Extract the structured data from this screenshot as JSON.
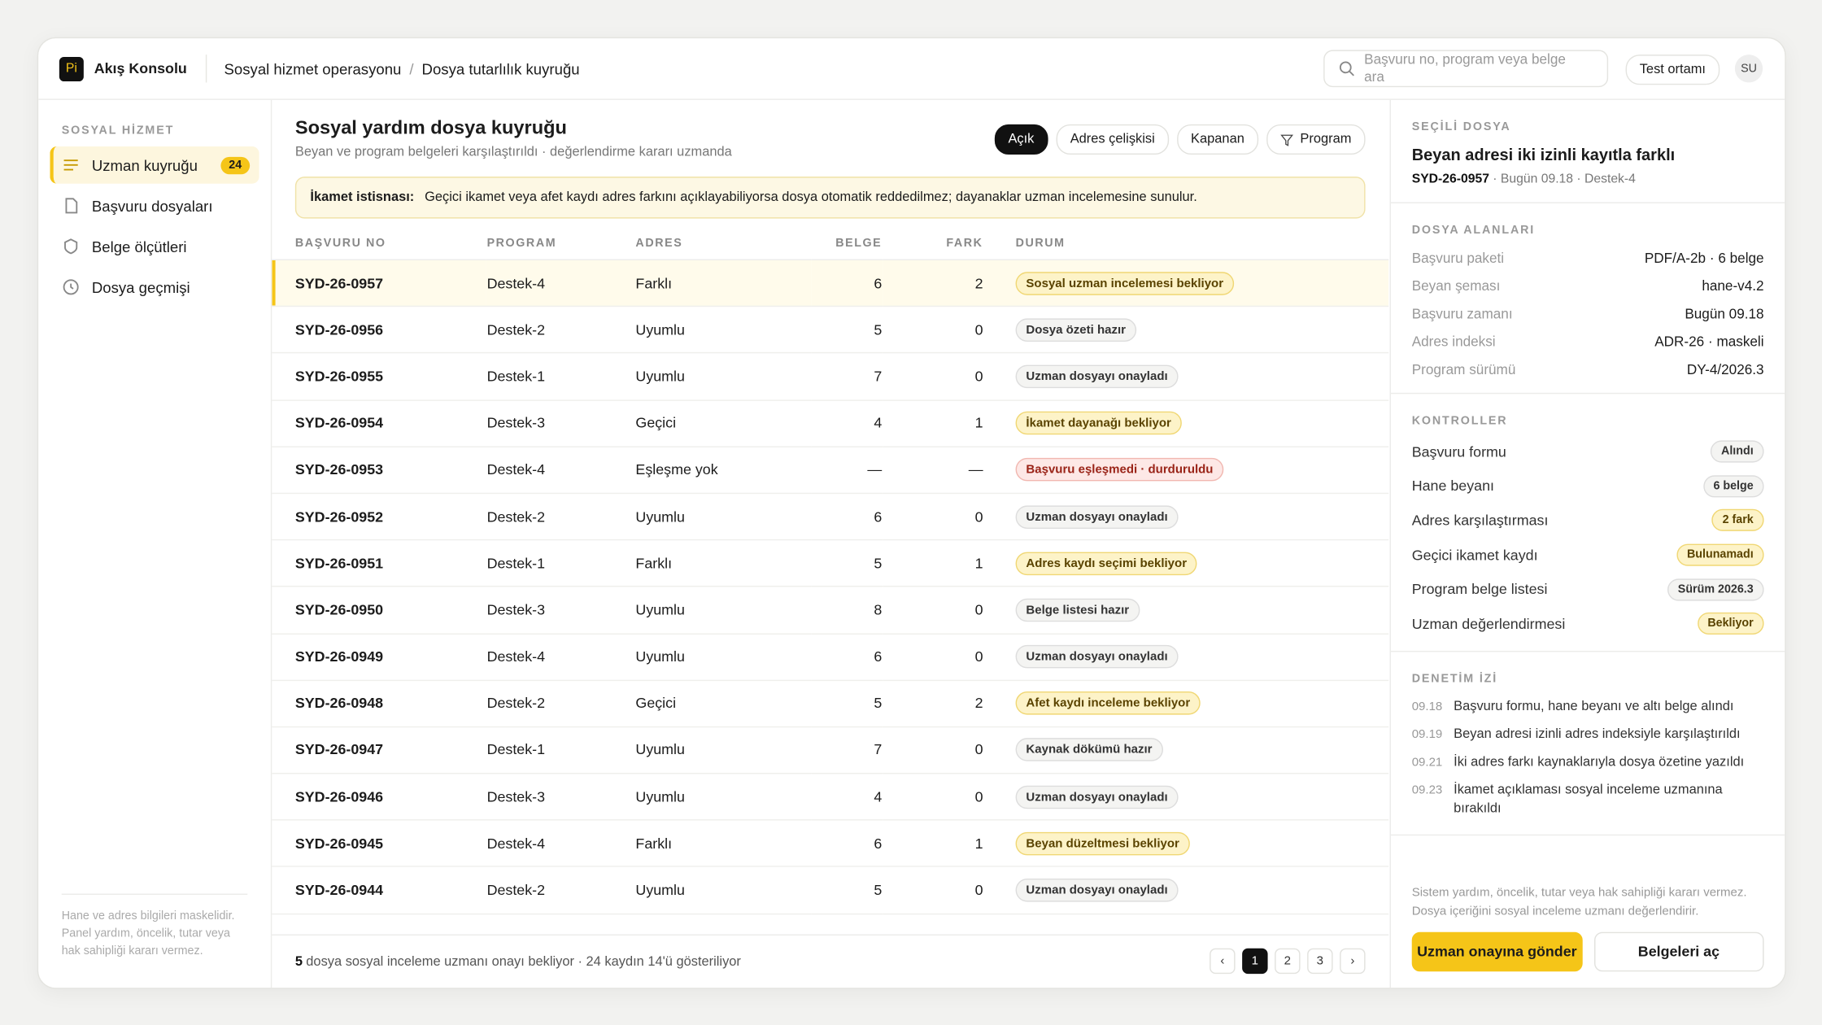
{
  "app": {
    "logo": "Pi",
    "name": "Akış Konsolu"
  },
  "breadcrumb": {
    "items": [
      "Sosyal hizmet operasyonu",
      "Dosya tutarlılık kuyruğu"
    ],
    "separator": "/"
  },
  "search": {
    "placeholder": "Başvuru no, program veya belge ara"
  },
  "environment": "Test ortamı",
  "avatar": "SU",
  "sidebar": {
    "section": "SOSYAL HİZMET",
    "items": [
      {
        "label": "Uzman kuyruğu",
        "badge": 24,
        "active": true
      },
      {
        "label": "Başvuru dosyaları"
      },
      {
        "label": "Belge ölçütleri"
      },
      {
        "label": "Dosya geçmişi"
      }
    ],
    "note": "Hane ve adres bilgileri maskelidir. Panel yardım, öncelik, tutar veya hak sahipliği kararı vermez."
  },
  "main": {
    "title": "Sosyal yardım dosya kuyruğu",
    "subtitle": "Beyan ve program belgeleri karşılaştırıldı · değerlendirme kararı uzmanda",
    "filters": [
      {
        "label": "Açık",
        "active": true
      },
      {
        "label": "Adres çelişkisi"
      },
      {
        "label": "Kapanan"
      },
      {
        "label": "Program",
        "icon": "filter"
      }
    ],
    "notice": {
      "label": "İkamet istisnası:",
      "text": "Geçici ikamet veya afet kaydı adres farkını açıklayabiliyorsa dosya otomatik reddedilmez; dayanaklar uzman incelemesine sunulur."
    },
    "table": {
      "columns": [
        "BAŞVURU NO",
        "PROGRAM",
        "ADRES",
        "BELGE",
        "FARK",
        "DURUM"
      ],
      "rows": [
        [
          "SYD-26-0957",
          "Destek-4",
          "Farklı",
          6,
          2,
          {
            "text": "Sosyal uzman incelemesi bekliyor",
            "tone": "warn"
          }
        ],
        [
          "SYD-26-0956",
          "Destek-2",
          "Uyumlu",
          5,
          0,
          {
            "text": "Dosya özeti hazır",
            "tone": "neutral"
          }
        ],
        [
          "SYD-26-0955",
          "Destek-1",
          "Uyumlu",
          7,
          0,
          {
            "text": "Uzman dosyayı onayladı",
            "tone": "neutral"
          }
        ],
        [
          "SYD-26-0954",
          "Destek-3",
          "Geçici",
          4,
          1,
          {
            "text": "İkamet dayanağı bekliyor",
            "tone": "warn"
          }
        ],
        [
          "SYD-26-0953",
          "Destek-4",
          "Eşleşme yok",
          "—",
          "—",
          {
            "text": "Başvuru eşleşmedi · durduruldu",
            "tone": "danger"
          }
        ],
        [
          "SYD-26-0952",
          "Destek-2",
          "Uyumlu",
          6,
          0,
          {
            "text": "Uzman dosyayı onayladı",
            "tone": "neutral"
          }
        ],
        [
          "SYD-26-0951",
          "Destek-1",
          "Farklı",
          5,
          1,
          {
            "text": "Adres kaydı seçimi bekliyor",
            "tone": "warn"
          }
        ],
        [
          "SYD-26-0950",
          "Destek-3",
          "Uyumlu",
          8,
          0,
          {
            "text": "Belge listesi hazır",
            "tone": "neutral"
          }
        ],
        [
          "SYD-26-0949",
          "Destek-4",
          "Uyumlu",
          6,
          0,
          {
            "text": "Uzman dosyayı onayladı",
            "tone": "neutral"
          }
        ],
        [
          "SYD-26-0948",
          "Destek-2",
          "Geçici",
          5,
          2,
          {
            "text": "Afet kaydı inceleme bekliyor",
            "tone": "warn"
          }
        ],
        [
          "SYD-26-0947",
          "Destek-1",
          "Uyumlu",
          7,
          0,
          {
            "text": "Kaynak dökümü hazır",
            "tone": "neutral"
          }
        ],
        [
          "SYD-26-0946",
          "Destek-3",
          "Uyumlu",
          4,
          0,
          {
            "text": "Uzman dosyayı onayladı",
            "tone": "neutral"
          }
        ],
        [
          "SYD-26-0945",
          "Destek-4",
          "Farklı",
          6,
          1,
          {
            "text": "Beyan düzeltmesi bekliyor",
            "tone": "warn"
          }
        ],
        [
          "SYD-26-0944",
          "Destek-2",
          "Uyumlu",
          5,
          0,
          {
            "text": "Uzman dosyayı onayladı",
            "tone": "neutral"
          }
        ]
      ],
      "selected_row": 0
    },
    "footer": {
      "count": 5,
      "text": "dosya sosyal inceleme uzmanı onayı bekliyor · 24 kaydın 14'ü gösteriliyor"
    },
    "pagination": {
      "prev": "‹",
      "pages": [
        "1",
        "2",
        "3"
      ],
      "current": 0,
      "next": "›"
    }
  },
  "detail": {
    "label": "SEÇİLİ DOSYA",
    "title": "Beyan adresi iki izinli kayıtla farklı",
    "id": "SYD-26-0957",
    "meta": "Bugün 09.18 · Destek-4",
    "fields_label": "DOSYA ALANLARI",
    "fields": [
      [
        "Başvuru paketi",
        "PDF/A-2b · 6 belge"
      ],
      [
        "Beyan şeması",
        "hane-v4.2"
      ],
      [
        "Başvuru zamanı",
        "Bugün 09.18"
      ],
      [
        "Adres indeksi",
        "ADR-26 · maskeli"
      ],
      [
        "Program sürümü",
        "DY-4/2026.3"
      ]
    ],
    "controls_label": "KONTROLLER",
    "controls": [
      {
        "label": "Başvuru formu",
        "status": "Alındı",
        "tone": "neutral"
      },
      {
        "label": "Hane beyanı",
        "status": "6 belge",
        "tone": "neutral"
      },
      {
        "label": "Adres karşılaştırması",
        "status": "2 fark",
        "tone": "warn"
      },
      {
        "label": "Geçici ikamet kaydı",
        "status": "Bulunamadı",
        "tone": "warn"
      },
      {
        "label": "Program belge listesi",
        "status": "Sürüm 2026.3",
        "tone": "neutral"
      },
      {
        "label": "Uzman değerlendirmesi",
        "status": "Bekliyor",
        "tone": "warn"
      }
    ],
    "audit_label": "DENETİM İZİ",
    "audit": [
      [
        "09.18",
        "Başvuru formu, hane beyanı ve altı belge alındı"
      ],
      [
        "09.19",
        "Beyan adresi izinli adres indeksiyle karşılaştırıldı"
      ],
      [
        "09.21",
        "İki adres farkı kaynaklarıyla dosya özetine yazıldı"
      ],
      [
        "09.23",
        "İkamet açıklaması sosyal inceleme uzmanına bırakıldı"
      ]
    ],
    "note": "Sistem yardım, öncelik, tutar veya hak sahipliği kararı vermez. Dosya içeriğini sosyal inceleme uzmanı değerlendirir.",
    "primary_action": "Uzman onayına gönder",
    "secondary_action": "Belgeleri aç"
  }
}
